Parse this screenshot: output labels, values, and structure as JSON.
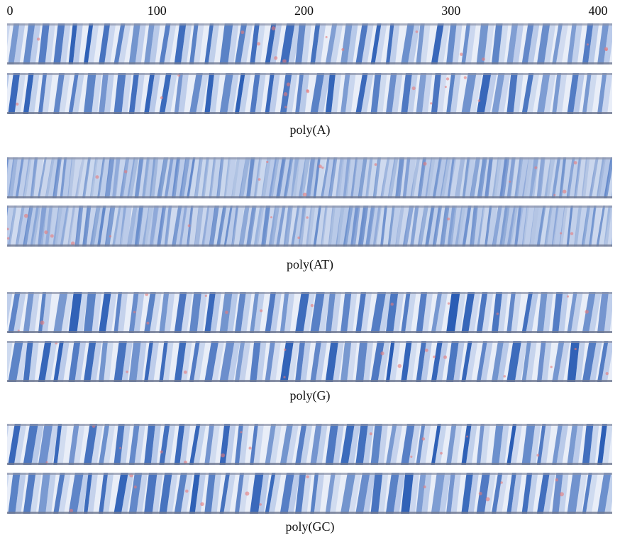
{
  "axis": {
    "xlim": [
      0,
      400
    ],
    "xticks": [
      0,
      100,
      200,
      300,
      400
    ]
  },
  "panels": [
    {
      "label": "poly(A)"
    },
    {
      "label": "poly(AT)"
    },
    {
      "label": "poly(G)"
    },
    {
      "label": "poly(GC)"
    }
  ]
}
